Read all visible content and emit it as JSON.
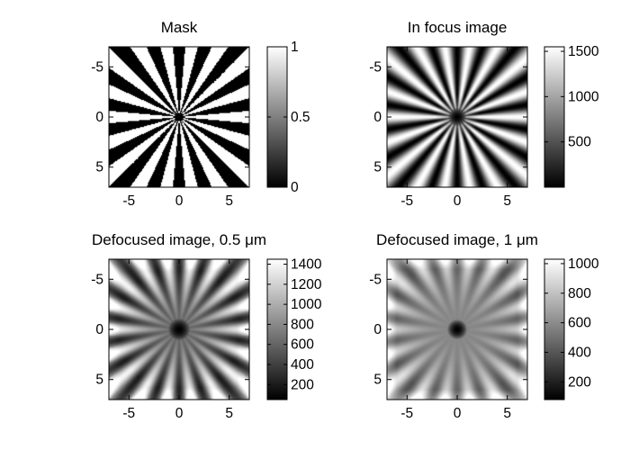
{
  "chart_data": [
    {
      "type": "heatmap",
      "title": "Mask",
      "pattern": "binary",
      "xlim": [
        -7,
        7
      ],
      "ylim": [
        -7,
        7
      ],
      "xticks": [
        -5,
        0,
        5
      ],
      "yticks": [
        -5,
        0,
        5
      ],
      "y_direction": "reverse",
      "colormap": "gray",
      "clim": [
        0,
        1
      ],
      "colorbar_ticks": [
        0,
        0.5,
        1
      ],
      "colorbar_labels": [
        "0",
        "0.5",
        "1"
      ],
      "spokes": 36,
      "center_dark_radius": 0.45,
      "grid": false
    },
    {
      "type": "heatmap",
      "title": "In focus image",
      "pattern": "focus",
      "xlim": [
        -7,
        7
      ],
      "ylim": [
        -7,
        7
      ],
      "xticks": [
        -5,
        0,
        5
      ],
      "yticks": [
        -5,
        0,
        5
      ],
      "y_direction": "reverse",
      "colormap": "gray",
      "clim": [
        0,
        1550
      ],
      "colorbar_ticks": [
        500,
        1000,
        1500
      ],
      "colorbar_labels": [
        "500",
        "1000",
        "1500"
      ],
      "spokes": 36,
      "center_dark_radius": 0.45,
      "grid": false
    },
    {
      "type": "heatmap",
      "title": "Defocused image, 0.5 μm",
      "pattern": "defocus_small",
      "xlim": [
        -7,
        7
      ],
      "ylim": [
        -7,
        7
      ],
      "xticks": [
        -5,
        0,
        5
      ],
      "yticks": [
        -5,
        0,
        5
      ],
      "y_direction": "reverse",
      "colormap": "gray",
      "clim": [
        50,
        1450
      ],
      "colorbar_ticks": [
        200,
        400,
        600,
        800,
        1000,
        1200,
        1400
      ],
      "colorbar_labels": [
        "200",
        "400",
        "600",
        "800",
        "1000",
        "1200",
        "1400"
      ],
      "spokes": 36,
      "center_dark_radius": 0.45,
      "grid": false
    },
    {
      "type": "heatmap",
      "title": "Defocused image, 1 μm",
      "pattern": "defocus_large",
      "xlim": [
        -7,
        7
      ],
      "ylim": [
        -7,
        7
      ],
      "xticks": [
        -5,
        0,
        5
      ],
      "yticks": [
        -5,
        0,
        5
      ],
      "y_direction": "reverse",
      "colormap": "gray",
      "clim": [
        80,
        1030
      ],
      "colorbar_ticks": [
        200,
        400,
        600,
        800,
        1000
      ],
      "colorbar_labels": [
        "200",
        "400",
        "600",
        "800",
        "1000"
      ],
      "spokes": 36,
      "center_dark_radius": 0.45,
      "grid": false
    }
  ]
}
